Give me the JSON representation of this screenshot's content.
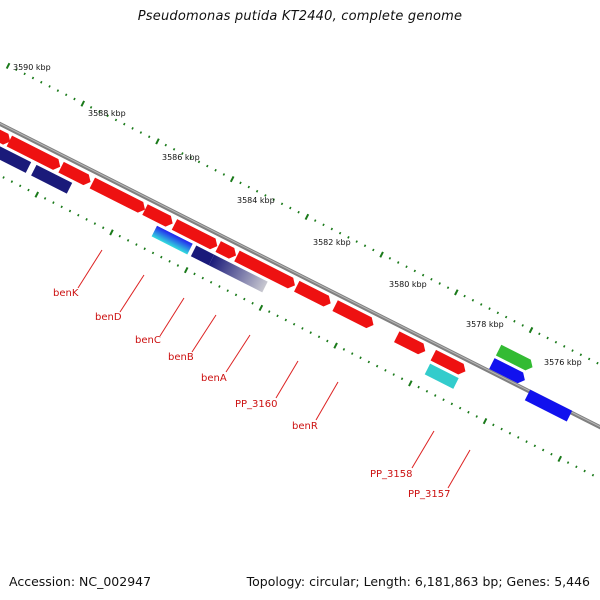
{
  "title": "Pseudomonas putida KT2440, complete genome",
  "accession": "Accession: NC_002947",
  "topology": "Topology: circular; Length: 6,181,863 bp; Genes: 5,446",
  "colors": {
    "backbone": "#808080",
    "gene_red": "#ee1111",
    "gene_navy": "#1a1a7a",
    "gene_blue": "#1111ee",
    "gene_cyan": "#33cccc",
    "gene_green": "#33bb33",
    "gene_gray": "#9a9aac",
    "tick": "#1a7a1a",
    "label": "#cc1111"
  },
  "scale": {
    "unit": "kbp",
    "labels": [
      {
        "text": "3590 kbp",
        "kbp": 3590
      },
      {
        "text": "3588 kbp",
        "kbp": 3588
      },
      {
        "text": "3586 kbp",
        "kbp": 3586
      },
      {
        "text": "3584 kbp",
        "kbp": 3584
      },
      {
        "text": "3582 kbp",
        "kbp": 3582
      },
      {
        "text": "3580 kbp",
        "kbp": 3580
      },
      {
        "text": "3578 kbp",
        "kbp": 3578
      },
      {
        "text": "3576 kbp",
        "kbp": 3576
      }
    ]
  },
  "gene_labels": [
    {
      "text": "benK",
      "name": "label-benK"
    },
    {
      "text": "benD",
      "name": "label-benD"
    },
    {
      "text": "benC",
      "name": "label-benC"
    },
    {
      "text": "benB",
      "name": "label-benB"
    },
    {
      "text": "benA",
      "name": "label-benA"
    },
    {
      "text": "PP_3160",
      "name": "label-PP_3160"
    },
    {
      "text": "benR",
      "name": "label-benR"
    },
    {
      "text": "PP_3158",
      "name": "label-PP_3158"
    },
    {
      "text": "PP_3157",
      "name": "label-PP_3157"
    }
  ]
}
